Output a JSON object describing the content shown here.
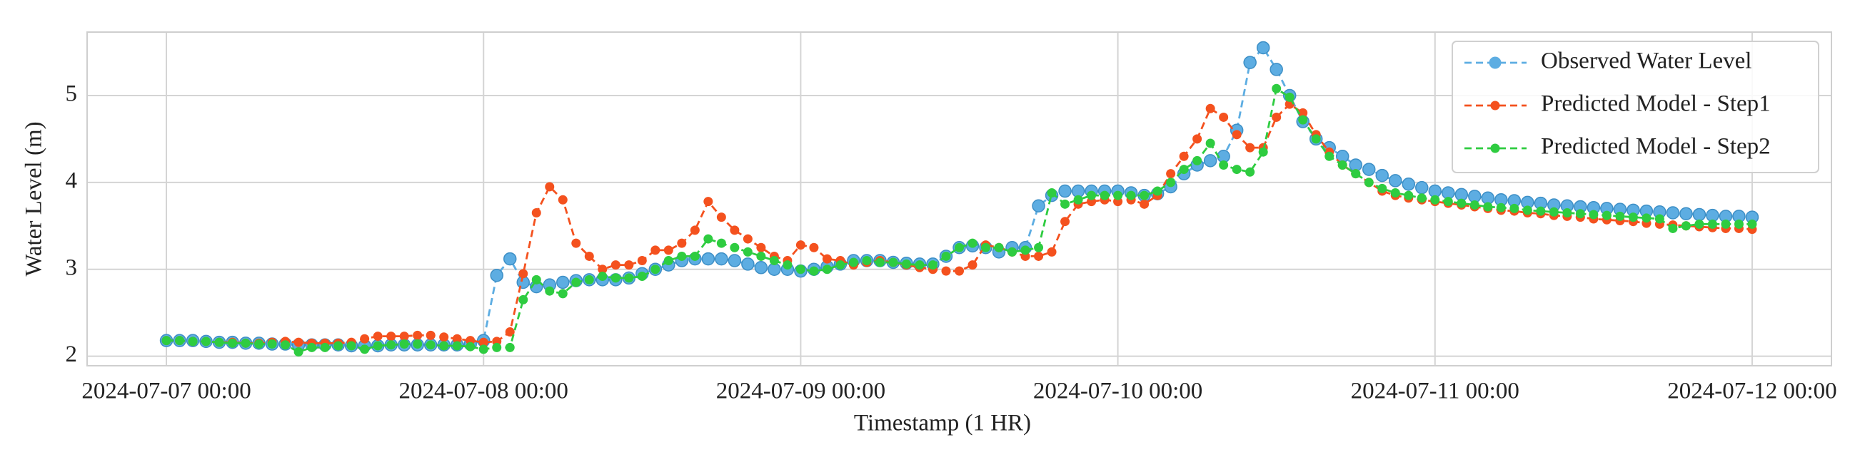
{
  "chart_data": {
    "type": "line",
    "xlabel": "Timestamp (1 HR)",
    "ylabel": "Water Level (m)",
    "xlim": [
      "2024-07-06 18:00",
      "2024-07-12 06:00"
    ],
    "xticks": [
      "2024-07-07 00:00",
      "2024-07-08 00:00",
      "2024-07-09 00:00",
      "2024-07-10 00:00",
      "2024-07-11 00:00",
      "2024-07-12 00:00"
    ],
    "ylim": [
      1.89,
      5.73
    ],
    "yticks": [
      2,
      3,
      4,
      5
    ],
    "grid": true,
    "legend": "upper right",
    "x": [
      "2024-07-07 00:00",
      "2024-07-07 01:00",
      "2024-07-07 02:00",
      "2024-07-07 03:00",
      "2024-07-07 04:00",
      "2024-07-07 05:00",
      "2024-07-07 06:00",
      "2024-07-07 07:00",
      "2024-07-07 08:00",
      "2024-07-07 09:00",
      "2024-07-07 10:00",
      "2024-07-07 11:00",
      "2024-07-07 12:00",
      "2024-07-07 13:00",
      "2024-07-07 14:00",
      "2024-07-07 15:00",
      "2024-07-07 16:00",
      "2024-07-07 17:00",
      "2024-07-07 18:00",
      "2024-07-07 19:00",
      "2024-07-07 20:00",
      "2024-07-07 21:00",
      "2024-07-07 22:00",
      "2024-07-07 23:00",
      "2024-07-08 00:00",
      "2024-07-08 01:00",
      "2024-07-08 02:00",
      "2024-07-08 03:00",
      "2024-07-08 04:00",
      "2024-07-08 05:00",
      "2024-07-08 06:00",
      "2024-07-08 07:00",
      "2024-07-08 08:00",
      "2024-07-08 09:00",
      "2024-07-08 10:00",
      "2024-07-08 11:00",
      "2024-07-08 12:00",
      "2024-07-08 13:00",
      "2024-07-08 14:00",
      "2024-07-08 15:00",
      "2024-07-08 16:00",
      "2024-07-08 17:00",
      "2024-07-08 18:00",
      "2024-07-08 19:00",
      "2024-07-08 20:00",
      "2024-07-08 21:00",
      "2024-07-08 22:00",
      "2024-07-08 23:00",
      "2024-07-09 00:00",
      "2024-07-09 01:00",
      "2024-07-09 02:00",
      "2024-07-09 03:00",
      "2024-07-09 04:00",
      "2024-07-09 05:00",
      "2024-07-09 06:00",
      "2024-07-09 07:00",
      "2024-07-09 08:00",
      "2024-07-09 09:00",
      "2024-07-09 10:00",
      "2024-07-09 11:00",
      "2024-07-09 12:00",
      "2024-07-09 13:00",
      "2024-07-09 14:00",
      "2024-07-09 15:00",
      "2024-07-09 16:00",
      "2024-07-09 17:00",
      "2024-07-09 18:00",
      "2024-07-09 19:00",
      "2024-07-09 20:00",
      "2024-07-09 21:00",
      "2024-07-09 22:00",
      "2024-07-09 23:00",
      "2024-07-10 00:00",
      "2024-07-10 01:00",
      "2024-07-10 02:00",
      "2024-07-10 03:00",
      "2024-07-10 04:00",
      "2024-07-10 05:00",
      "2024-07-10 06:00",
      "2024-07-10 07:00",
      "2024-07-10 08:00",
      "2024-07-10 09:00",
      "2024-07-10 10:00",
      "2024-07-10 11:00",
      "2024-07-10 12:00",
      "2024-07-10 13:00",
      "2024-07-10 14:00",
      "2024-07-10 15:00",
      "2024-07-10 16:00",
      "2024-07-10 17:00",
      "2024-07-10 18:00",
      "2024-07-10 19:00",
      "2024-07-10 20:00",
      "2024-07-10 21:00",
      "2024-07-10 22:00",
      "2024-07-10 23:00",
      "2024-07-11 00:00",
      "2024-07-11 01:00",
      "2024-07-11 02:00",
      "2024-07-11 03:00",
      "2024-07-11 04:00",
      "2024-07-11 05:00",
      "2024-07-11 06:00",
      "2024-07-11 07:00",
      "2024-07-11 08:00",
      "2024-07-11 09:00",
      "2024-07-11 10:00",
      "2024-07-11 11:00",
      "2024-07-11 12:00",
      "2024-07-11 13:00",
      "2024-07-11 14:00",
      "2024-07-11 15:00",
      "2024-07-11 16:00",
      "2024-07-11 17:00",
      "2024-07-11 18:00",
      "2024-07-11 19:00",
      "2024-07-11 20:00",
      "2024-07-11 21:00",
      "2024-07-11 22:00",
      "2024-07-11 23:00",
      "2024-07-12 00:00"
    ],
    "series": [
      {
        "name": "Observed Water Level",
        "color": "#5dade2",
        "values": [
          2.18,
          2.18,
          2.18,
          2.17,
          2.16,
          2.16,
          2.15,
          2.15,
          2.14,
          2.14,
          2.13,
          2.13,
          2.13,
          2.13,
          2.12,
          2.12,
          2.12,
          2.13,
          2.13,
          2.13,
          2.13,
          2.13,
          2.13,
          2.14,
          2.18,
          2.93,
          3.12,
          2.85,
          2.8,
          2.82,
          2.85,
          2.87,
          2.88,
          2.88,
          2.88,
          2.9,
          2.95,
          3.0,
          3.05,
          3.1,
          3.12,
          3.12,
          3.12,
          3.1,
          3.06,
          3.02,
          3.0,
          3.0,
          2.98,
          3.0,
          3.03,
          3.06,
          3.1,
          3.1,
          3.1,
          3.08,
          3.07,
          3.06,
          3.06,
          3.15,
          3.25,
          3.27,
          3.25,
          3.2,
          3.25,
          3.25,
          3.73,
          3.85,
          3.9,
          3.9,
          3.9,
          3.9,
          3.9,
          3.88,
          3.85,
          3.87,
          3.95,
          4.1,
          4.2,
          4.25,
          4.3,
          4.6,
          5.38,
          5.55,
          5.3,
          5.0,
          4.7,
          4.5,
          4.4,
          4.3,
          4.2,
          4.15,
          4.08,
          4.02,
          3.98,
          3.94,
          3.9,
          3.88,
          3.86,
          3.84,
          3.82,
          3.8,
          3.79,
          3.77,
          3.76,
          3.74,
          3.73,
          3.72,
          3.71,
          3.7,
          3.69,
          3.68,
          3.67,
          3.66,
          3.65,
          3.64,
          3.63,
          3.62,
          3.61,
          3.61,
          3.6
        ]
      },
      {
        "name": "Predicted Model - Step1",
        "color": "#f4511e",
        "values": [
          2.18,
          2.18,
          2.17,
          2.17,
          2.16,
          2.16,
          2.15,
          2.15,
          2.16,
          2.17,
          2.16,
          2.15,
          2.15,
          2.15,
          2.16,
          2.2,
          2.23,
          2.23,
          2.23,
          2.24,
          2.24,
          2.22,
          2.2,
          2.18,
          2.16,
          2.17,
          2.28,
          2.95,
          3.65,
          3.95,
          3.8,
          3.3,
          3.15,
          3.0,
          3.05,
          3.05,
          3.1,
          3.22,
          3.22,
          3.3,
          3.45,
          3.78,
          3.6,
          3.45,
          3.35,
          3.25,
          3.15,
          3.1,
          3.28,
          3.25,
          3.12,
          3.1,
          3.05,
          3.08,
          3.1,
          3.08,
          3.05,
          3.02,
          3.0,
          2.98,
          2.98,
          3.05,
          3.28,
          3.25,
          3.2,
          3.15,
          3.15,
          3.2,
          3.55,
          3.75,
          3.78,
          3.8,
          3.78,
          3.8,
          3.75,
          3.85,
          4.1,
          4.3,
          4.5,
          4.85,
          4.75,
          4.55,
          4.4,
          4.4,
          4.75,
          4.9,
          4.8,
          4.55,
          4.35,
          4.2,
          4.1,
          4.0,
          3.9,
          3.85,
          3.82,
          3.8,
          3.78,
          3.76,
          3.74,
          3.72,
          3.7,
          3.68,
          3.67,
          3.65,
          3.64,
          3.62,
          3.61,
          3.6,
          3.58,
          3.57,
          3.56,
          3.55,
          3.53,
          3.52,
          3.51,
          3.5,
          3.49,
          3.48,
          3.47,
          3.47,
          3.46
        ]
      },
      {
        "name": "Predicted Model - Step2",
        "color": "#2ecc40",
        "values": [
          2.18,
          2.18,
          2.17,
          2.17,
          2.16,
          2.15,
          2.15,
          2.14,
          2.14,
          2.13,
          2.05,
          2.1,
          2.1,
          2.12,
          2.12,
          2.08,
          2.12,
          2.13,
          2.14,
          2.14,
          2.13,
          2.12,
          2.12,
          2.11,
          2.08,
          2.1,
          2.1,
          2.65,
          2.88,
          2.75,
          2.72,
          2.85,
          2.88,
          2.92,
          2.9,
          2.9,
          2.92,
          3.0,
          3.1,
          3.15,
          3.15,
          3.35,
          3.3,
          3.25,
          3.2,
          3.15,
          3.1,
          3.05,
          3.0,
          2.98,
          3.0,
          3.05,
          3.08,
          3.1,
          3.08,
          3.08,
          3.06,
          3.05,
          3.05,
          3.15,
          3.25,
          3.3,
          3.25,
          3.25,
          3.2,
          3.22,
          3.25,
          3.88,
          3.75,
          3.8,
          3.85,
          3.85,
          3.85,
          3.85,
          3.85,
          3.9,
          4.0,
          4.15,
          4.25,
          4.45,
          4.2,
          4.15,
          4.12,
          4.35,
          5.08,
          4.98,
          4.72,
          4.5,
          4.3,
          4.2,
          4.1,
          4.0,
          3.93,
          3.88,
          3.85,
          3.82,
          3.8,
          3.78,
          3.76,
          3.74,
          3.72,
          3.71,
          3.7,
          3.68,
          3.67,
          3.66,
          3.65,
          3.64,
          3.63,
          3.62,
          3.61,
          3.6,
          3.59,
          3.58,
          3.47,
          3.5,
          3.52,
          3.52,
          3.52,
          3.52,
          3.52
        ]
      }
    ]
  }
}
